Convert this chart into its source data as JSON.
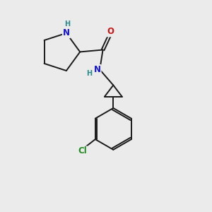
{
  "background_color": "#ebebeb",
  "bond_color": "#1a1a1a",
  "atom_colors": {
    "N": "#1414cc",
    "O": "#cc1414",
    "Cl": "#228B22",
    "H": "#2a8a8a",
    "C": "#1a1a1a"
  },
  "font_size_atoms": 8.5,
  "font_size_H": 7.0,
  "line_width": 1.4,
  "figsize": [
    3.0,
    3.0
  ],
  "dpi": 100,
  "xlim": [
    0,
    10
  ],
  "ylim": [
    0,
    10
  ]
}
